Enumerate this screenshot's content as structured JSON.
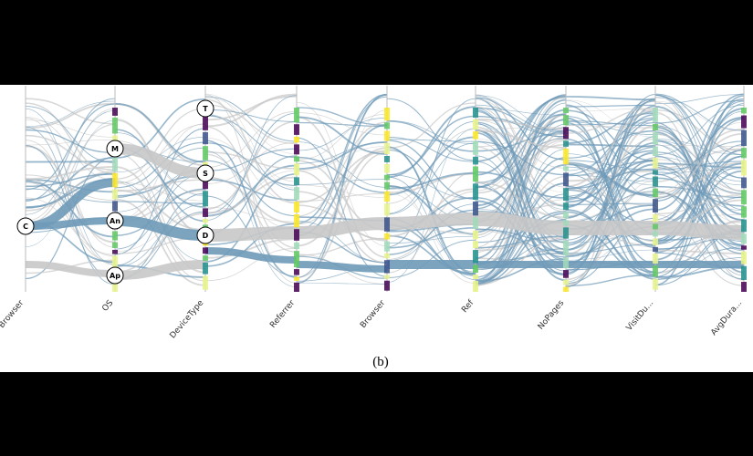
{
  "axes": [
    "Browser",
    "OS",
    "DeviceType",
    "Referrer",
    "Browser",
    "Ref",
    "NoPages",
    "VisitDu...",
    "AvgDura..."
  ],
  "nodes": [
    {
      "label": "C"
    },
    {
      "label": "M"
    },
    {
      "label": "An"
    },
    {
      "label": "Ap"
    },
    {
      "label": "T"
    },
    {
      "label": "S"
    },
    {
      "label": "D"
    }
  ],
  "caption": "(b)"
}
